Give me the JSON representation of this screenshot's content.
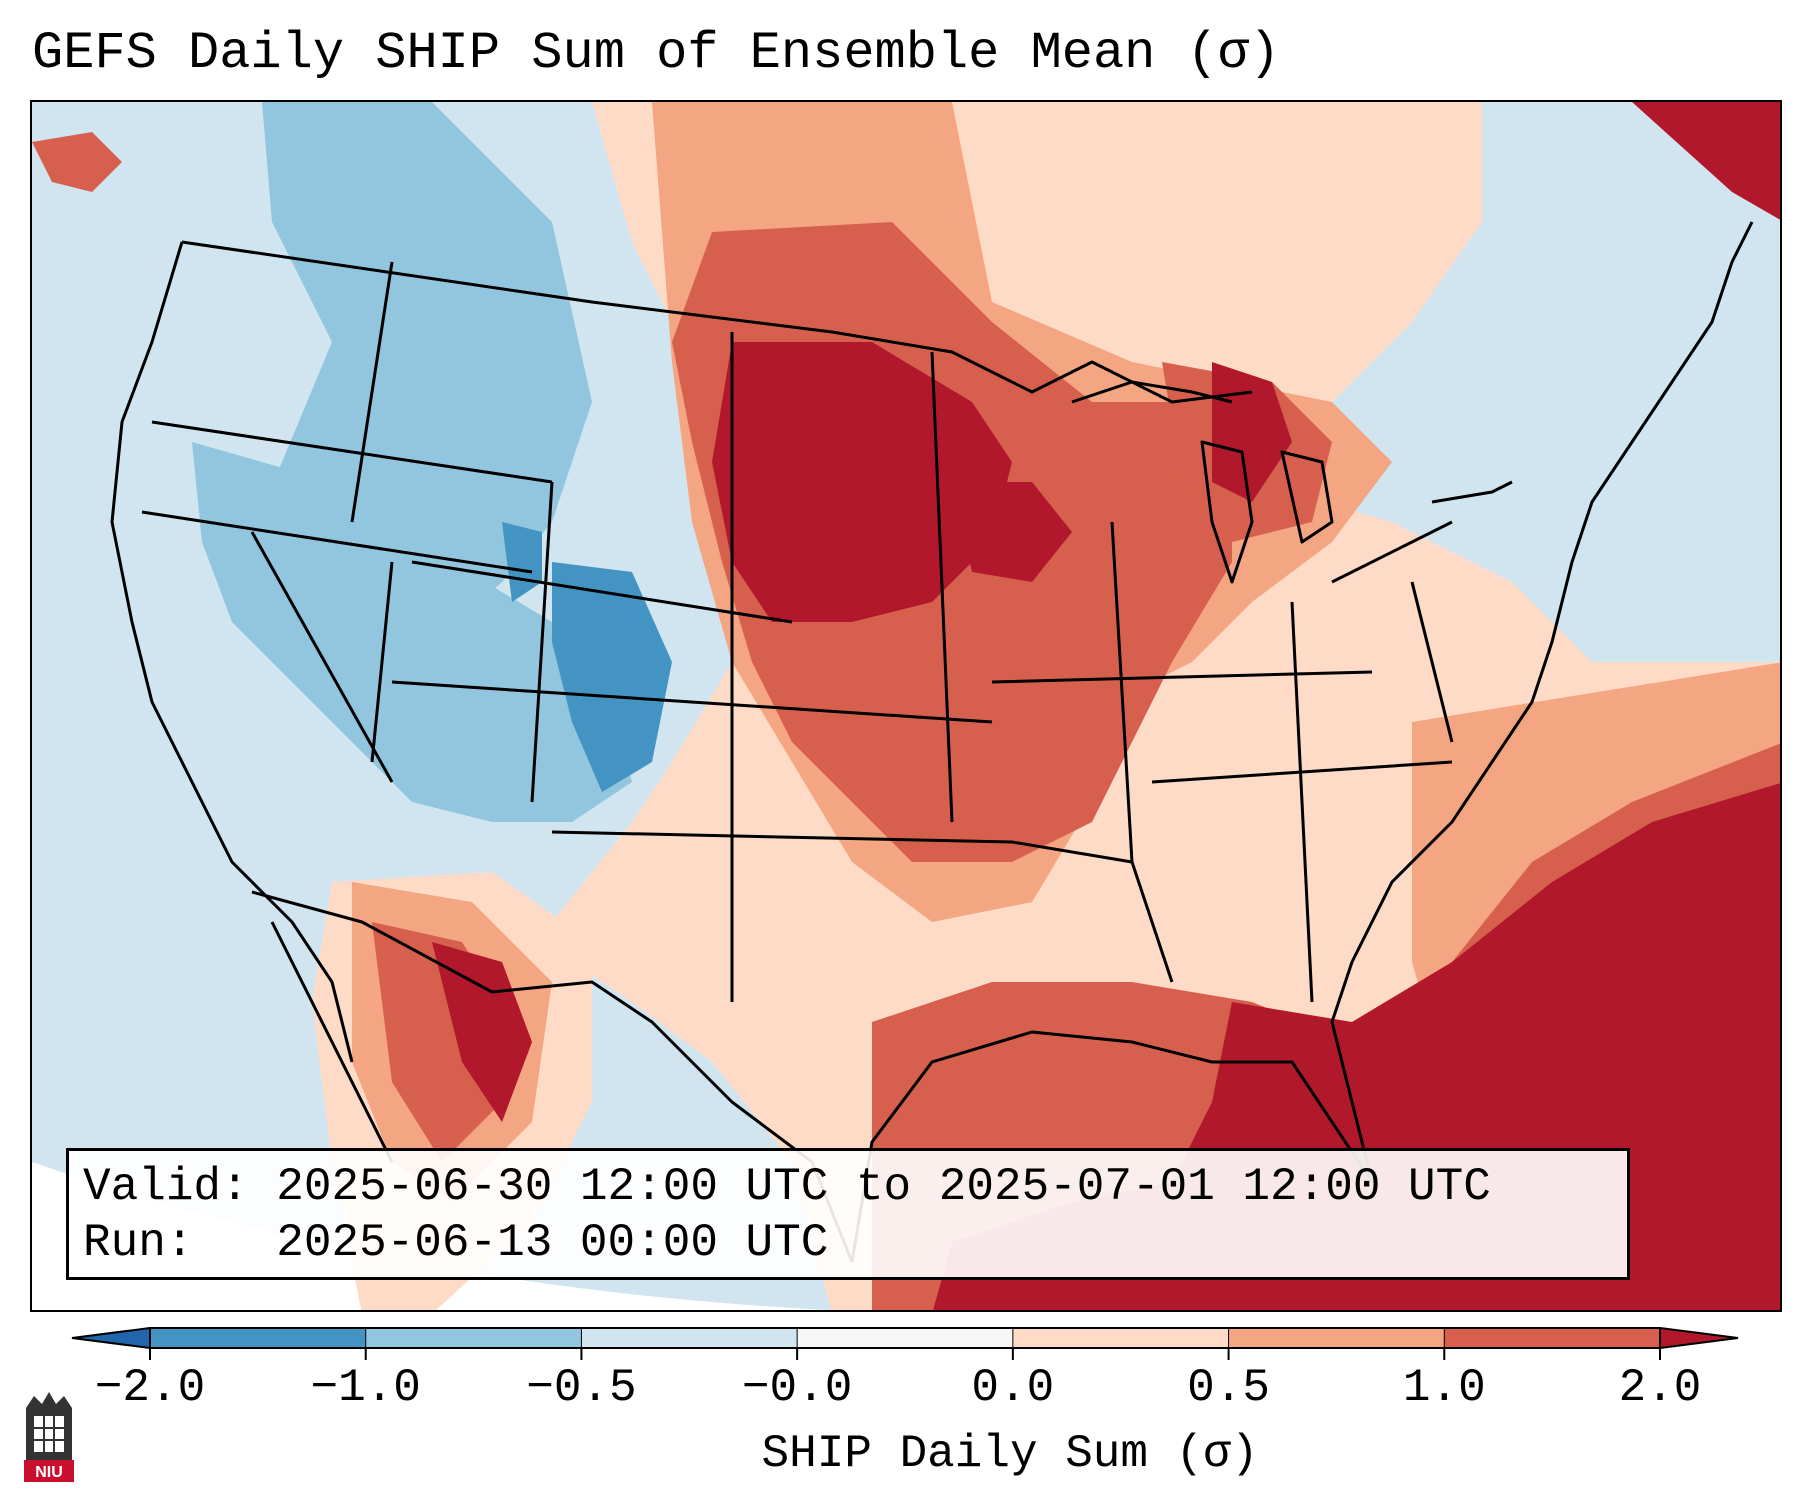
{
  "title": "GEFS Daily SHIP Sum of Ensemble Mean (σ)",
  "info_box": {
    "valid_label": "Valid:",
    "valid_value": "2025-06-30 12:00 UTC to 2025-07-01 12:00 UTC",
    "run_label": "Run:",
    "run_value": "2025-06-13 00:00 UTC"
  },
  "colorbar": {
    "label": "SHIP Daily Sum (σ)",
    "ticks": [
      "−2.0",
      "−1.0",
      "−0.5",
      "−0.0",
      "0.0",
      "0.5",
      "1.0",
      "2.0"
    ],
    "colors": [
      "#2166ac",
      "#4393c3",
      "#92c5de",
      "#d1e5f0",
      "#f7f7f7",
      "#fddbc7",
      "#f4a582",
      "#d6604d",
      "#b2182b"
    ]
  },
  "logo": {
    "text": "NIU"
  }
}
